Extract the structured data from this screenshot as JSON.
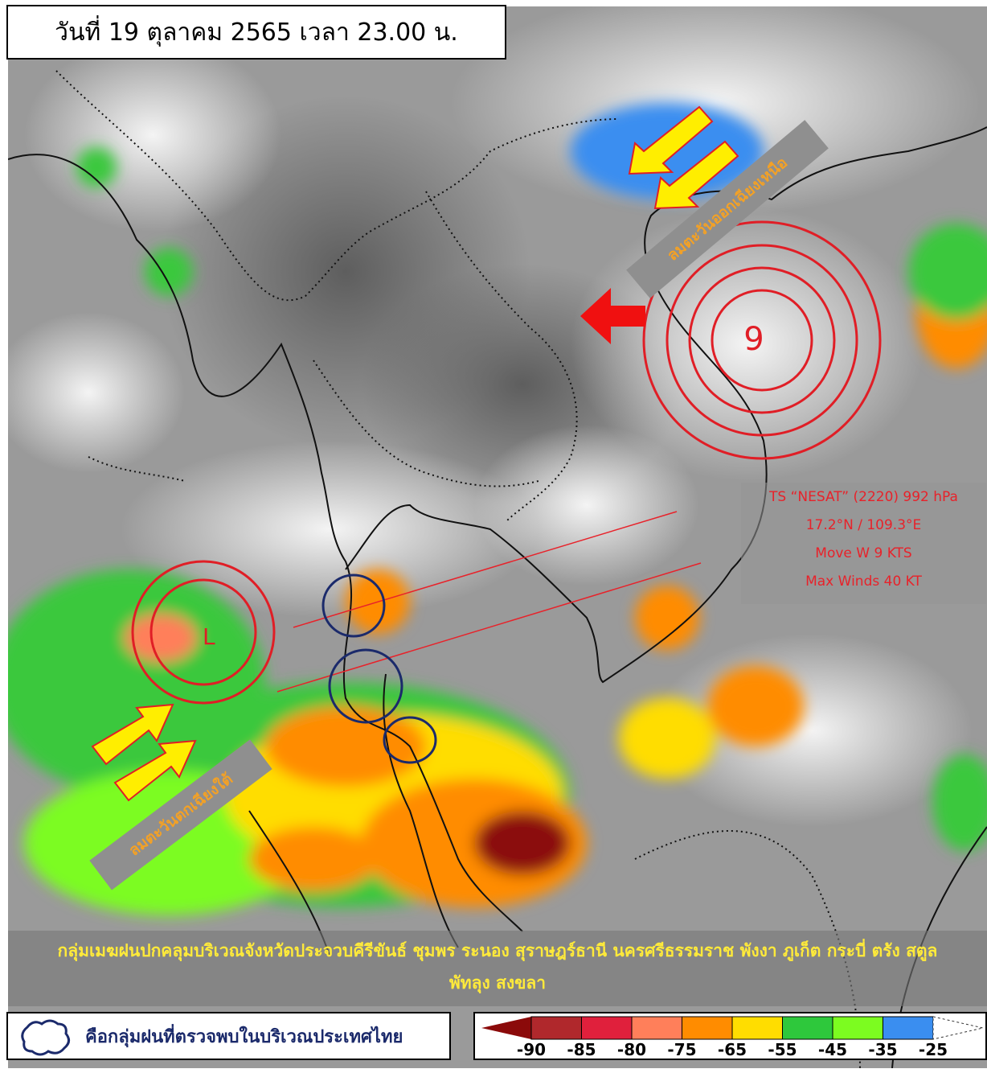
{
  "title": "วันที่ 19 ตุลาคม 2565 เวลา 23.00 น.",
  "storm": {
    "name_line": "TS “NESAT” (2220) 992 hPa",
    "position": "17.2°N / 109.3°E",
    "movement": "Move W 9 KTS",
    "max_winds": "Max Winds 40 KT",
    "symbol": "tropical-storm-icon",
    "color": "#e8222a"
  },
  "low_pressure": {
    "label": "L"
  },
  "wind_labels": {
    "northeast": "ลมตะวันออกเฉียงเหนือ",
    "southwest": "ลมตะวันตกเฉียงใต้"
  },
  "rain_summary": {
    "line1": "กลุ่มเมฆฝนปกคลุมบริเวณจังหวัดประจวบคีรีขันธ์ ชุมพร ระนอง สุราษฎร์ธานี นครศรีธรรมราช พังงา ภูเก็ต กระบี่ ตรัง สตูล",
    "line2": "พัทลุง สงขลา"
  },
  "legend": {
    "cloud_text": "คือกลุ่มฝนที่ตรวจพบในบริเวณประเทศไทย",
    "scale_labels": [
      "-90",
      "-85",
      "-80",
      "-75",
      "-65",
      "-55",
      "-45",
      "-35",
      "-25"
    ],
    "scale_colors": [
      "#8b0a0a",
      "#b0282c",
      "#e0203c",
      "#ff7f5a",
      "#ff8c00",
      "#ffdd00",
      "#2ec83c",
      "#7cfc20",
      "#3a8ef0"
    ]
  }
}
